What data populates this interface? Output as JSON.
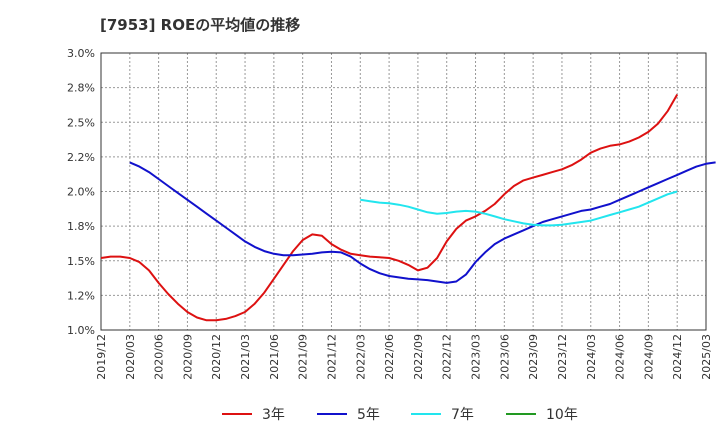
{
  "chart_data": {
    "type": "line",
    "title": "[7953]  ROEの平均値の推移",
    "xlabel": "",
    "ylabel": "",
    "ylim": [
      1.0,
      3.0
    ],
    "y_ticks": [
      "1.0%",
      "1.2%",
      "1.5%",
      "1.8%",
      "2.0%",
      "2.2%",
      "2.5%",
      "2.8%",
      "3.0%"
    ],
    "x_ticks": [
      "2019/12",
      "2020/03",
      "2020/06",
      "2020/09",
      "2020/12",
      "2021/03",
      "2021/06",
      "2021/09",
      "2021/12",
      "2022/03",
      "2022/06",
      "2022/09",
      "2022/12",
      "2023/03",
      "2023/06",
      "2023/09",
      "2023/12",
      "2024/03",
      "2024/06",
      "2024/09",
      "2024/12",
      "2025/03"
    ],
    "grid": true,
    "legend_position": "bottom",
    "series": [
      {
        "name": "3年",
        "color": "#dd1111",
        "start_index": 0,
        "values": [
          1.52,
          1.53,
          1.53,
          1.52,
          1.49,
          1.43,
          1.34,
          1.26,
          1.19,
          1.13,
          1.09,
          1.07,
          1.07,
          1.08,
          1.1,
          1.13,
          1.19,
          1.27,
          1.37,
          1.47,
          1.57,
          1.65,
          1.69,
          1.68,
          1.62,
          1.58,
          1.55,
          1.54,
          1.53,
          1.525,
          1.52,
          1.5,
          1.47,
          1.43,
          1.45,
          1.52,
          1.64,
          1.73,
          1.79,
          1.82,
          1.86,
          1.91,
          1.98,
          2.04,
          2.08,
          2.1,
          2.12,
          2.14,
          2.16,
          2.19,
          2.23,
          2.28,
          2.31,
          2.33,
          2.34,
          2.36,
          2.39,
          2.43,
          2.49,
          2.58,
          2.7
        ]
      },
      {
        "name": "5年",
        "color": "#1111cc",
        "start_index": 3,
        "values": [
          2.21,
          2.18,
          2.14,
          2.09,
          2.04,
          1.99,
          1.94,
          1.89,
          1.84,
          1.79,
          1.74,
          1.69,
          1.64,
          1.6,
          1.57,
          1.55,
          1.54,
          1.54,
          1.545,
          1.55,
          1.56,
          1.565,
          1.56,
          1.53,
          1.48,
          1.44,
          1.41,
          1.39,
          1.38,
          1.37,
          1.365,
          1.36,
          1.35,
          1.34,
          1.35,
          1.4,
          1.49,
          1.56,
          1.62,
          1.66,
          1.69,
          1.72,
          1.75,
          1.78,
          1.8,
          1.82,
          1.84,
          1.86,
          1.87,
          1.89,
          1.91,
          1.94,
          1.97,
          2.0,
          2.03,
          2.06,
          2.09,
          2.12,
          2.15,
          2.18,
          2.2,
          2.21
        ]
      },
      {
        "name": "7年",
        "color": "#22e5ee",
        "start_index": 27,
        "values": [
          1.94,
          1.93,
          1.92,
          1.915,
          1.905,
          1.89,
          1.87,
          1.85,
          1.84,
          1.845,
          1.855,
          1.86,
          1.855,
          1.84,
          1.82,
          1.8,
          1.785,
          1.77,
          1.76,
          1.755,
          1.755,
          1.76,
          1.77,
          1.78,
          1.79,
          1.81,
          1.83,
          1.85,
          1.87,
          1.89,
          1.92,
          1.95,
          1.98,
          2.0
        ]
      },
      {
        "name": "10年",
        "color": "#229922",
        "start_index": 0,
        "values": []
      }
    ]
  }
}
